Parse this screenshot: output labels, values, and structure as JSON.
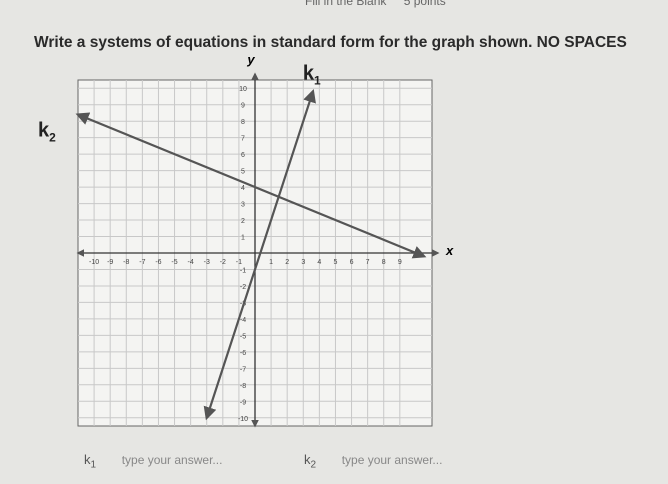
{
  "header": {
    "kind": "Fill in the Blank",
    "points": "5 points"
  },
  "question": "Write a systems of equations in standard form for the graph shown. NO SPACES",
  "graph": {
    "x_label": "x",
    "y_label": "y",
    "xlim": [
      -11,
      11
    ],
    "ylim": [
      -10.5,
      10.5
    ],
    "xticks": [
      -10,
      -9,
      -8,
      -7,
      -6,
      -5,
      -4,
      -3,
      -2,
      -1,
      1,
      2,
      3,
      4,
      5,
      6,
      7,
      8,
      9
    ],
    "yticks": [
      -10,
      -9,
      -8,
      -7,
      -6,
      -5,
      -4,
      -3,
      -2,
      -1,
      1,
      2,
      3,
      4,
      5,
      6,
      7,
      8,
      9,
      10
    ],
    "lines": [
      {
        "letter": "k",
        "sub": "1",
        "color": "#555555",
        "x": [
          -3,
          3.6
        ],
        "y": [
          -10,
          9.8
        ]
      },
      {
        "letter": "k",
        "sub": "2",
        "color": "#555555",
        "x": [
          -11,
          10.5
        ],
        "y": [
          8.4,
          -0.2
        ]
      }
    ]
  },
  "answers": [
    {
      "letter": "k",
      "sub": "1",
      "placeholder": "type your answer..."
    },
    {
      "letter": "k",
      "sub": "2",
      "placeholder": "type your answer..."
    }
  ]
}
